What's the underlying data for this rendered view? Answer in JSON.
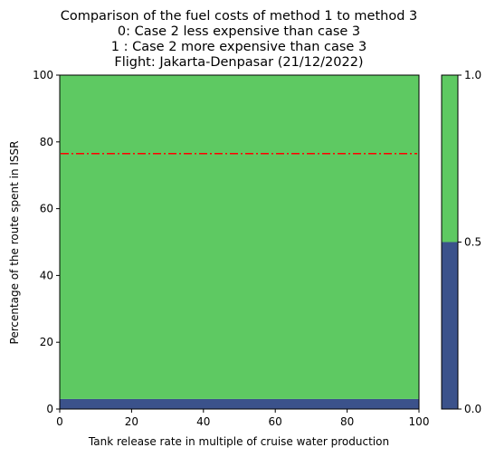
{
  "chart_data": {
    "type": "heatmap",
    "title_lines": [
      "Comparison of the fuel costs of method 1 to method 3",
      "0: Case 2 less expensive than case 3",
      "1 : Case 2 more expensive than case 3",
      "Flight: Jakarta-Denpasar (21/12/2022)"
    ],
    "xlabel": "Tank release rate in multiple of cruise water production",
    "ylabel": "Percentage of the route spent in ISSR",
    "xlim": [
      0,
      100
    ],
    "ylim": [
      0,
      100
    ],
    "xticks": [
      0,
      20,
      40,
      60,
      80,
      100
    ],
    "yticks": [
      0,
      20,
      40,
      60,
      80,
      100
    ],
    "regions": [
      {
        "value": 0,
        "x_range": [
          0,
          100
        ],
        "y_range": [
          0,
          3
        ],
        "color": "#3b528b"
      },
      {
        "value": 1,
        "x_range": [
          0,
          100
        ],
        "y_range": [
          3,
          100
        ],
        "color": "#5ec962"
      }
    ],
    "reference_line": {
      "y": 76.5,
      "color": "#ff0000",
      "style": "dash-dot"
    },
    "colorbar": {
      "ticks": [
        "0.0",
        "0.5",
        "1.0"
      ],
      "levels": [
        {
          "from": 0.0,
          "to": 0.5,
          "color": "#3b528b"
        },
        {
          "from": 0.5,
          "to": 1.0,
          "color": "#5ec962"
        }
      ]
    },
    "grid": false
  }
}
